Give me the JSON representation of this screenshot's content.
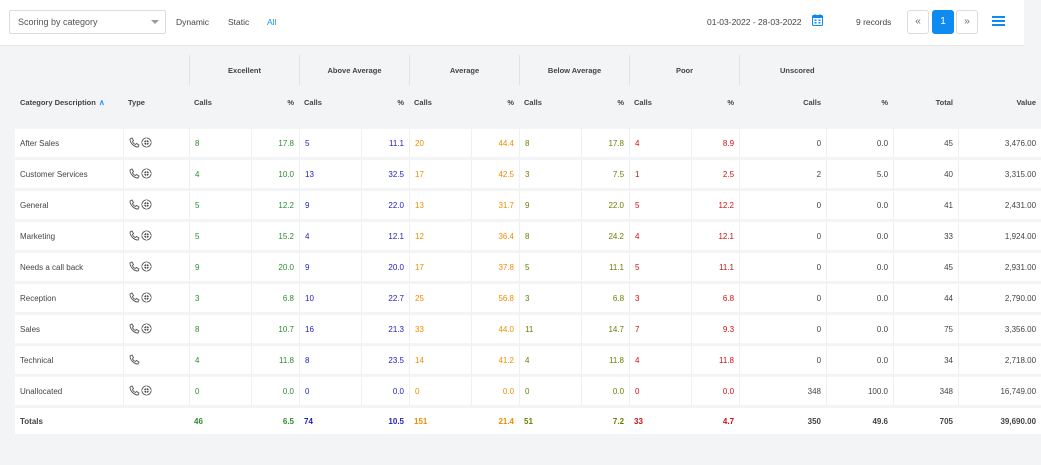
{
  "toolbar": {
    "select_label": "Scoring by category",
    "filters": [
      "Dynamic",
      "Static",
      "All"
    ],
    "date_range": "01-03-2022 - 28-03-2022",
    "records": "9 records",
    "pager_prev": "«",
    "pager_page": "1",
    "pager_next": "»"
  },
  "table": {
    "groups": [
      "Excellent",
      "Above Average",
      "Average",
      "Below Average",
      "Poor",
      "Unscored"
    ],
    "headers": {
      "category": "Category Description",
      "type": "Type",
      "calls": "Calls",
      "pct": "%",
      "total": "Total",
      "value": "Value"
    },
    "rows": [
      {
        "name": "After Sales",
        "icons": 2,
        "exc": [
          "8",
          "17.8"
        ],
        "abv": [
          "5",
          "11.1"
        ],
        "avg": [
          "20",
          "44.4"
        ],
        "blw": [
          "8",
          "17.8"
        ],
        "poor": [
          "4",
          "8.9"
        ],
        "uns": [
          "0",
          "0.0"
        ],
        "total": "45",
        "value": "3,476.00"
      },
      {
        "name": "Customer Services",
        "icons": 2,
        "exc": [
          "4",
          "10.0"
        ],
        "abv": [
          "13",
          "32.5"
        ],
        "avg": [
          "17",
          "42.5"
        ],
        "blw": [
          "3",
          "7.5"
        ],
        "poor": [
          "1",
          "2.5"
        ],
        "uns": [
          "2",
          "5.0"
        ],
        "total": "40",
        "value": "3,315.00"
      },
      {
        "name": "General",
        "icons": 2,
        "exc": [
          "5",
          "12.2"
        ],
        "abv": [
          "9",
          "22.0"
        ],
        "avg": [
          "13",
          "31.7"
        ],
        "blw": [
          "9",
          "22.0"
        ],
        "poor": [
          "5",
          "12.2"
        ],
        "uns": [
          "0",
          "0.0"
        ],
        "total": "41",
        "value": "2,431.00"
      },
      {
        "name": "Marketing",
        "icons": 2,
        "exc": [
          "5",
          "15.2"
        ],
        "abv": [
          "4",
          "12.1"
        ],
        "avg": [
          "12",
          "36.4"
        ],
        "blw": [
          "8",
          "24.2"
        ],
        "poor": [
          "4",
          "12.1"
        ],
        "uns": [
          "0",
          "0.0"
        ],
        "total": "33",
        "value": "1,924.00"
      },
      {
        "name": "Needs a call back",
        "icons": 2,
        "exc": [
          "9",
          "20.0"
        ],
        "abv": [
          "9",
          "20.0"
        ],
        "avg": [
          "17",
          "37.8"
        ],
        "blw": [
          "5",
          "11.1"
        ],
        "poor": [
          "5",
          "11.1"
        ],
        "uns": [
          "0",
          "0.0"
        ],
        "total": "45",
        "value": "2,931.00"
      },
      {
        "name": "Reception",
        "icons": 2,
        "exc": [
          "3",
          "6.8"
        ],
        "abv": [
          "10",
          "22.7"
        ],
        "avg": [
          "25",
          "56.8"
        ],
        "blw": [
          "3",
          "6.8"
        ],
        "poor": [
          "3",
          "6.8"
        ],
        "uns": [
          "0",
          "0.0"
        ],
        "total": "44",
        "value": "2,790.00"
      },
      {
        "name": "Sales",
        "icons": 2,
        "exc": [
          "8",
          "10.7"
        ],
        "abv": [
          "16",
          "21.3"
        ],
        "avg": [
          "33",
          "44.0"
        ],
        "blw": [
          "11",
          "14.7"
        ],
        "poor": [
          "7",
          "9.3"
        ],
        "uns": [
          "0",
          "0.0"
        ],
        "total": "75",
        "value": "3,356.00"
      },
      {
        "name": "Technical",
        "icons": 1,
        "exc": [
          "4",
          "11.8"
        ],
        "abv": [
          "8",
          "23.5"
        ],
        "avg": [
          "14",
          "41.2"
        ],
        "blw": [
          "4",
          "11.8"
        ],
        "poor": [
          "4",
          "11.8"
        ],
        "uns": [
          "0",
          "0.0"
        ],
        "total": "34",
        "value": "2,718.00"
      },
      {
        "name": "Unallocated",
        "icons": 2,
        "exc": [
          "0",
          "0.0"
        ],
        "abv": [
          "0",
          "0.0"
        ],
        "avg": [
          "0",
          "0.0"
        ],
        "blw": [
          "0",
          "0.0"
        ],
        "poor": [
          "0",
          "0.0"
        ],
        "uns": [
          "348",
          "100.0"
        ],
        "total": "348",
        "value": "16,749.00"
      }
    ],
    "totals": {
      "label": "Totals",
      "exc": [
        "46",
        "6.5"
      ],
      "abv": [
        "74",
        "10.5"
      ],
      "avg": [
        "151",
        "21.4"
      ],
      "blw": [
        "51",
        "7.2"
      ],
      "poor": [
        "33",
        "4.7"
      ],
      "uns": [
        "350",
        "49.6"
      ],
      "total": "705",
      "value": "39,690.00"
    }
  },
  "colors": {
    "accent": "#0d8bf0",
    "excellent": "#2e8b2e",
    "above_average": "#2222bb",
    "average": "#f08c00",
    "below_average": "#6b7f00",
    "poor": "#cc1111"
  },
  "icons": [
    "chevron-down-icon",
    "calendar-icon",
    "hamburger-menu-icon",
    "phone-icon",
    "web-call-icon",
    "sort-ascending-icon"
  ]
}
